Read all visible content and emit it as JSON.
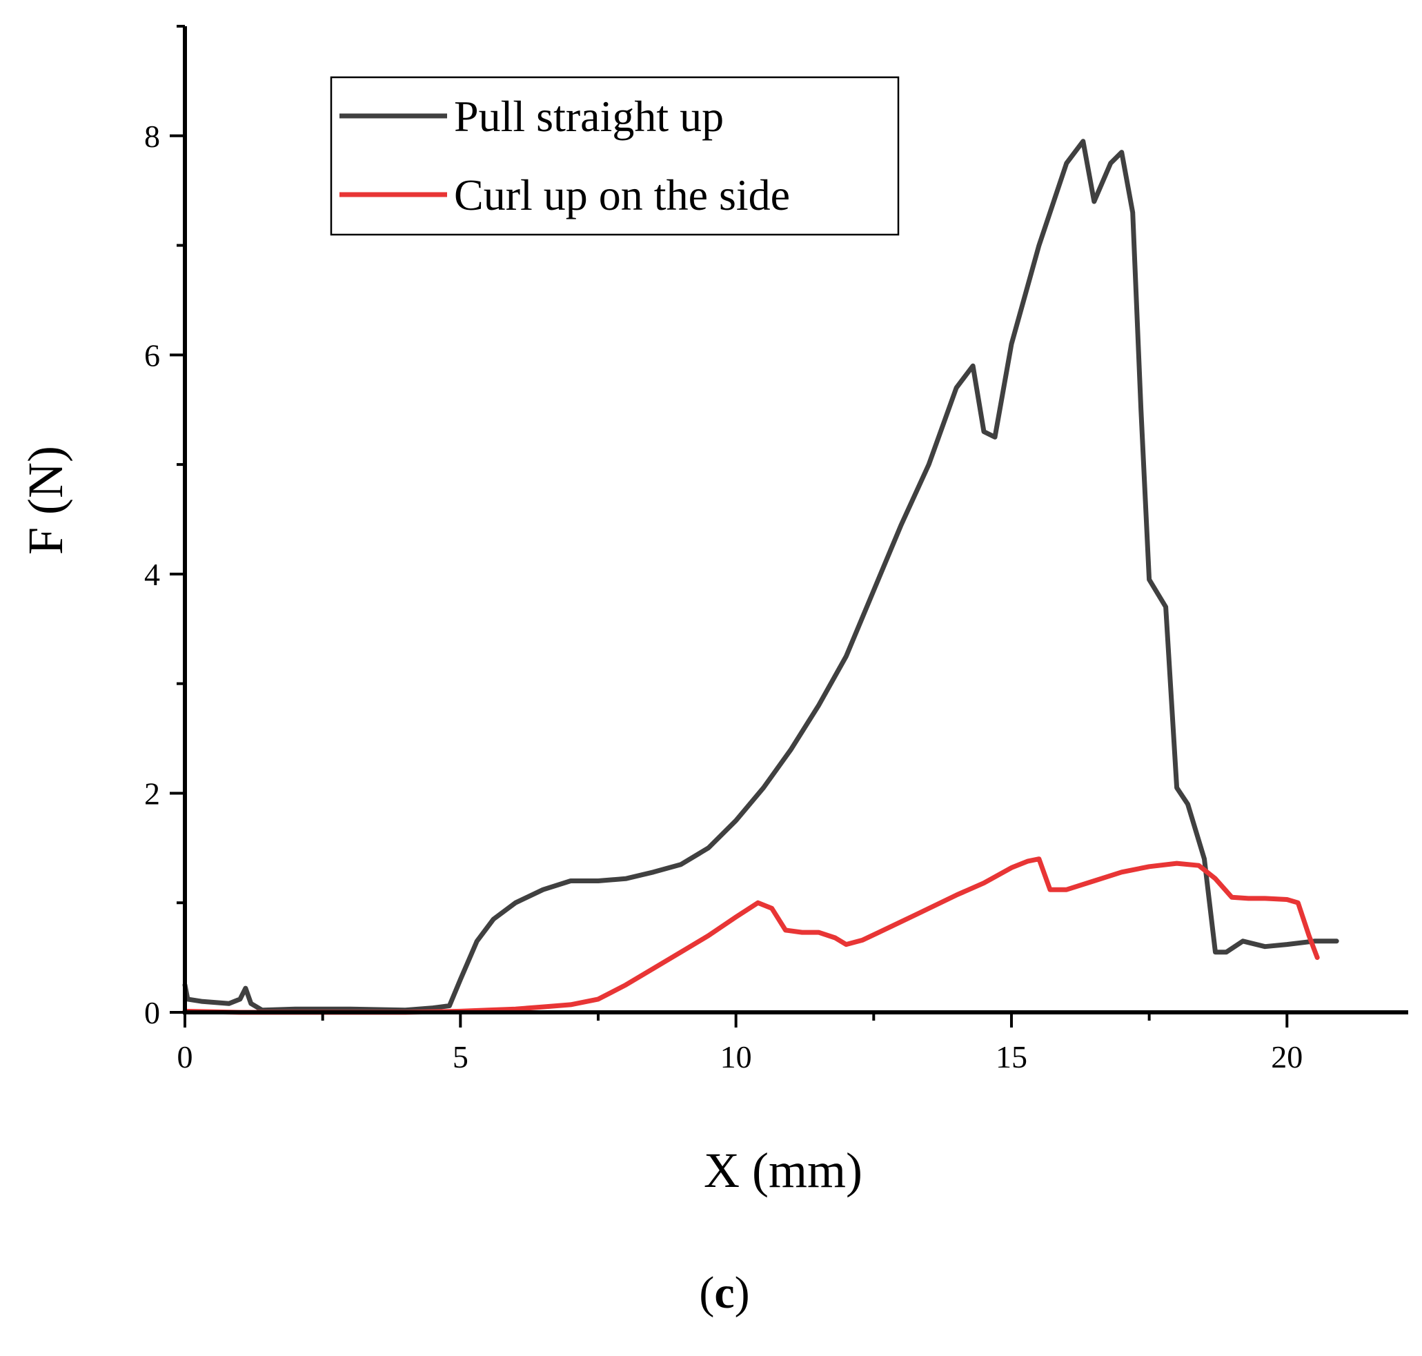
{
  "chart_data": {
    "type": "line",
    "title": "",
    "xlabel": "X (mm)",
    "ylabel": "F (N)",
    "xlim": [
      0,
      22.2
    ],
    "ylim": [
      0,
      9.0
    ],
    "xticks": [
      0,
      5,
      10,
      15,
      20
    ],
    "yticks": [
      0,
      2,
      4,
      6,
      8
    ],
    "grid": false,
    "legend_position": "top-left",
    "series": [
      {
        "name": "Pull straight up",
        "color": "#404040",
        "x": [
          0,
          0.05,
          0.3,
          0.8,
          1.0,
          1.1,
          1.2,
          1.4,
          2.0,
          3.0,
          4.0,
          4.5,
          4.8,
          5.0,
          5.3,
          5.6,
          6.0,
          6.5,
          7.0,
          7.5,
          8.0,
          8.5,
          9.0,
          9.5,
          10.0,
          10.5,
          11.0,
          11.5,
          12.0,
          12.5,
          13.0,
          13.5,
          14.0,
          14.3,
          14.5,
          14.7,
          15.0,
          15.5,
          16.0,
          16.3,
          16.5,
          16.8,
          17.0,
          17.2,
          17.35,
          17.5,
          17.8,
          18.0,
          18.2,
          18.5,
          18.7,
          18.9,
          19.2,
          19.6,
          20.0,
          20.5,
          20.9
        ],
        "y": [
          0.25,
          0.12,
          0.1,
          0.08,
          0.12,
          0.22,
          0.08,
          0.02,
          0.03,
          0.03,
          0.02,
          0.04,
          0.06,
          0.3,
          0.65,
          0.85,
          1.0,
          1.12,
          1.2,
          1.2,
          1.22,
          1.28,
          1.35,
          1.5,
          1.75,
          2.05,
          2.4,
          2.8,
          3.25,
          3.85,
          4.45,
          5.0,
          5.7,
          5.9,
          5.3,
          5.25,
          6.1,
          7.0,
          7.75,
          7.95,
          7.4,
          7.75,
          7.85,
          7.3,
          5.5,
          3.95,
          3.7,
          2.05,
          1.9,
          1.4,
          0.55,
          0.55,
          0.65,
          0.6,
          0.62,
          0.65,
          0.65
        ]
      },
      {
        "name": "Curl up on the side",
        "color": "#e83535",
        "x": [
          0,
          1.0,
          2.0,
          3.0,
          4.0,
          5.0,
          5.5,
          6.0,
          6.5,
          7.0,
          7.5,
          8.0,
          8.5,
          9.0,
          9.5,
          10.0,
          10.4,
          10.65,
          10.9,
          11.2,
          11.5,
          11.8,
          12.0,
          12.3,
          12.8,
          13.3,
          14.0,
          14.5,
          15.0,
          15.3,
          15.5,
          15.7,
          16.0,
          16.5,
          17.0,
          17.5,
          18.0,
          18.4,
          18.7,
          19.0,
          19.3,
          19.6,
          20.0,
          20.2,
          20.4,
          20.55
        ],
        "y": [
          0.01,
          0.0,
          0.0,
          0.0,
          0.0,
          0.01,
          0.02,
          0.03,
          0.05,
          0.07,
          0.12,
          0.25,
          0.4,
          0.55,
          0.7,
          0.87,
          1.0,
          0.95,
          0.75,
          0.73,
          0.73,
          0.68,
          0.62,
          0.66,
          0.78,
          0.9,
          1.07,
          1.18,
          1.32,
          1.38,
          1.4,
          1.12,
          1.12,
          1.2,
          1.28,
          1.33,
          1.36,
          1.34,
          1.22,
          1.05,
          1.04,
          1.04,
          1.03,
          1.0,
          0.7,
          0.5
        ]
      }
    ]
  },
  "caption": {
    "open": "(",
    "letter": "c",
    "close": ")"
  }
}
